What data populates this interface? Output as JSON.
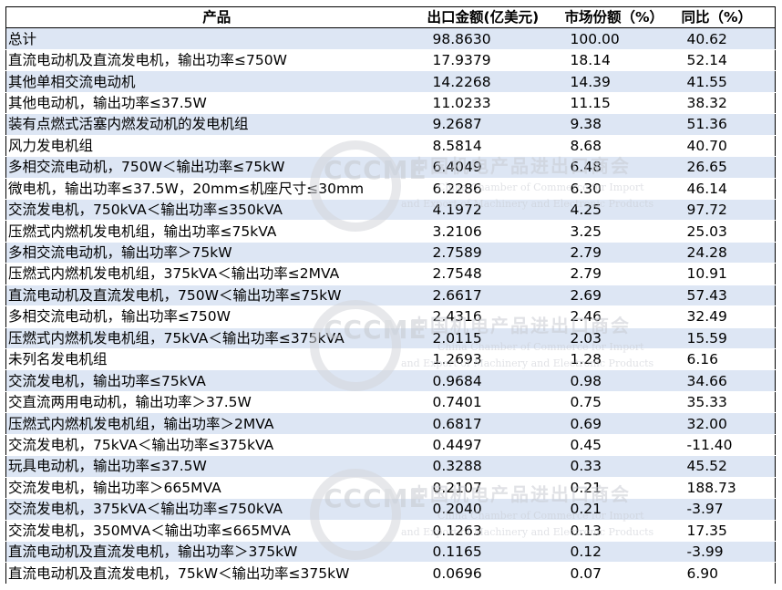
{
  "headers": {
    "product": "产品",
    "export_value": "出口金额(亿美元)",
    "market_share": "市场份额（%）",
    "yoy": "同比（%）"
  },
  "rows": [
    {
      "product": "总计",
      "value": "98.8630",
      "share": "100.00",
      "yoy": "40.62"
    },
    {
      "product": "直流电动机及直流发电机，输出功率≤750W",
      "value": "17.9379",
      "share": "18.14",
      "yoy": "52.14"
    },
    {
      "product": "其他单相交流电动机",
      "value": "14.2268",
      "share": "14.39",
      "yoy": "41.55"
    },
    {
      "product": "其他电动机，输出功率≤37.5W",
      "value": "11.0233",
      "share": "11.15",
      "yoy": "38.32"
    },
    {
      "product": "装有点燃式活塞内燃发动机的发电机组",
      "value": "9.2687",
      "share": "9.38",
      "yoy": "51.36"
    },
    {
      "product": "风力发电机组",
      "value": "8.5814",
      "share": "8.68",
      "yoy": "40.70"
    },
    {
      "product": "多相交流电动机，750W＜输出功率≤75kW",
      "value": "6.4049",
      "share": "6.48",
      "yoy": "26.65"
    },
    {
      "product": "微电机，输出功率≤37.5W，20mm≤机座尺寸≤30mm",
      "value": "6.2286",
      "share": "6.30",
      "yoy": "46.14"
    },
    {
      "product": "交流发电机，750kVA＜输出功率≤350kVA",
      "value": "4.1972",
      "share": "4.25",
      "yoy": "97.72"
    },
    {
      "product": "压燃式内燃机发电机组，输出功率≤75kVA",
      "value": "3.2106",
      "share": "3.25",
      "yoy": "25.03"
    },
    {
      "product": "多相交流电动机，输出功率＞75kW",
      "value": "2.7589",
      "share": "2.79",
      "yoy": "24.28"
    },
    {
      "product": "压燃式内燃机发电机组，375kVA＜输出功率≤2MVA",
      "value": "2.7548",
      "share": "2.79",
      "yoy": "10.91"
    },
    {
      "product": "直流电动机及直流发电机，750W＜输出功率≤75kW",
      "value": "2.6617",
      "share": "2.69",
      "yoy": "57.43"
    },
    {
      "product": "多相交流电动机，输出功率≤750W",
      "value": "2.4316",
      "share": "2.46",
      "yoy": "32.49"
    },
    {
      "product": "压燃式内燃机发电机组，75kVA＜输出功率≤375kVA",
      "value": "2.0115",
      "share": "2.03",
      "yoy": "15.59"
    },
    {
      "product": "未列名发电机组",
      "value": "1.2693",
      "share": "1.28",
      "yoy": "6.16"
    },
    {
      "product": "交流发电机，输出功率≤75kVA",
      "value": "0.9684",
      "share": "0.98",
      "yoy": "34.66"
    },
    {
      "product": "交直流两用电动机，输出功率＞37.5W",
      "value": "0.7401",
      "share": "0.75",
      "yoy": "35.33"
    },
    {
      "product": "压燃式内燃机发电机组，输出功率＞2MVA",
      "value": "0.6817",
      "share": "0.69",
      "yoy": "32.00"
    },
    {
      "product": "交流发电机，75kVA＜输出功率≤375kVA",
      "value": "0.4497",
      "share": "0.45",
      "yoy": "-11.40"
    },
    {
      "product": "玩具电动机，输出功率≤37.5W",
      "value": "0.3288",
      "share": "0.33",
      "yoy": "45.52"
    },
    {
      "product": "交流发电机，输出功率＞665MVA",
      "value": "0.2107",
      "share": "0.21",
      "yoy": "188.73"
    },
    {
      "product": "交流发电机，375kVA＜输出功率≤750kVA",
      "value": "0.2040",
      "share": "0.21",
      "yoy": "-3.97"
    },
    {
      "product": "交流发电机，350MVA＜输出功率≤665MVA",
      "value": "0.1263",
      "share": "0.13",
      "yoy": "17.35"
    },
    {
      "product": "直流电动机及直流发电机，输出功率＞375kW",
      "value": "0.1165",
      "share": "0.12",
      "yoy": "-3.99"
    },
    {
      "product": "直流电动机及直流发电机，75kW＜输出功率≤375kW",
      "value": "0.0696",
      "share": "0.07",
      "yoy": "6.90"
    }
  ],
  "watermark": {
    "logo_text": "CCCME",
    "cn": "中国机电产品进出口商会",
    "en_line1": "China Chamber of Commerce for Import",
    "en_line2": "and Export of Machinery and Electronic Products"
  }
}
